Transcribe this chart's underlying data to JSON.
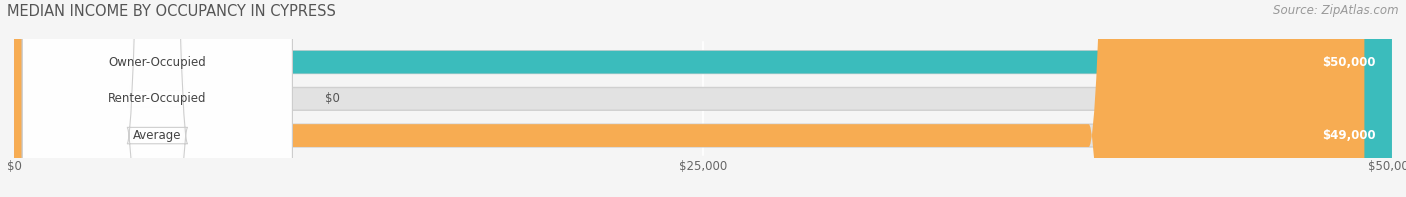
{
  "title": "MEDIAN INCOME BY OCCUPANCY IN CYPRESS",
  "source": "Source: ZipAtlas.com",
  "categories": [
    "Owner-Occupied",
    "Renter-Occupied",
    "Average"
  ],
  "values": [
    50000,
    0,
    49000
  ],
  "bar_colors": [
    "#3bbcbc",
    "#c4a5d0",
    "#f7ac52"
  ],
  "bar_labels": [
    "$50,000",
    "$0",
    "$49,000"
  ],
  "xlim": [
    0,
    50000
  ],
  "xticks": [
    0,
    25000,
    50000
  ],
  "xtick_labels": [
    "$0",
    "$25,000",
    "$50,000"
  ],
  "background_color": "#f5f5f5",
  "bar_bg_color": "#e2e2e2",
  "bar_bg_border": "#d0d0d0",
  "title_fontsize": 10.5,
  "source_fontsize": 8.5,
  "label_fontsize": 8.5,
  "tick_fontsize": 8.5,
  "renter_stub": 1800
}
